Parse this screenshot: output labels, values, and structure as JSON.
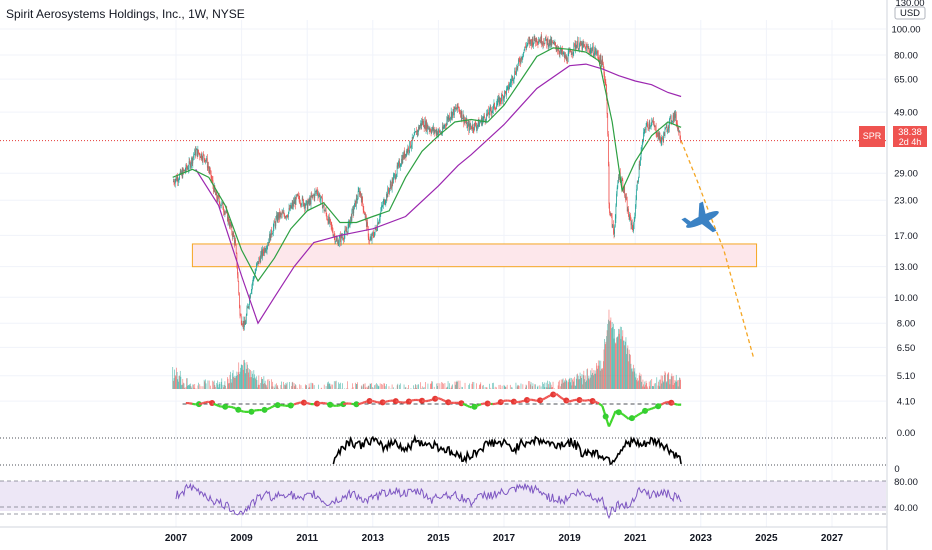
{
  "header": {
    "symbol_line": "Spirit Aerosystems Holdings, Inc., 1W, NYSE"
  },
  "price_scale": {
    "currency": "USD",
    "top_value": "130.00",
    "labels": [
      "100.00",
      "80.00",
      "65.00",
      "49.00",
      "38.38",
      "29.00",
      "23.00",
      "17.00",
      "13.00",
      "10.00",
      "8.00",
      "6.50",
      "5.10",
      "4.10"
    ],
    "last_price_tag": {
      "symbol": "SPR",
      "price": "38.38",
      "countdown": "2d 4h"
    }
  },
  "indicator_scales": {
    "oscillator_zero": "0.00",
    "black_line_zero": "0",
    "rsi_levels": [
      "80.00",
      "40.00"
    ]
  },
  "time_axis": {
    "labels": [
      "2007",
      "2009",
      "2011",
      "2013",
      "2015",
      "2017",
      "2019",
      "2021",
      "2023",
      "2025",
      "2027"
    ]
  },
  "colors": {
    "up": "#26a69a",
    "down": "#ef5350",
    "ma_fast": "#2ea043",
    "ma_slow": "#9c27b0",
    "support_zone_fill": "#fde7eb",
    "support_zone_border": "#f5a623",
    "projection": "#f5a623",
    "price_line": "#e53935",
    "rsi_line": "#7e57c2",
    "rsi_band": "#ede7f6",
    "airplane": "#3b82c4"
  },
  "icons": {
    "annotation": "airplane-icon"
  },
  "chart_data": {
    "type": "line",
    "title": "Spirit Aerosystems Holdings, Inc., 1W, NYSE",
    "scale": "log",
    "ylim": [
      3.6,
      130
    ],
    "xlim": [
      2006.7,
      2028.6
    ],
    "price_series": {
      "x": [
        2006.9,
        2007.2,
        2007.4,
        2007.6,
        2007.9,
        2008.2,
        2008.5,
        2008.8,
        2008.95,
        2009.1,
        2009.3,
        2009.5,
        2009.8,
        2010.1,
        2010.4,
        2010.7,
        2011.0,
        2011.3,
        2011.6,
        2011.9,
        2012.2,
        2012.4,
        2012.6,
        2012.9,
        2013.1,
        2013.3,
        2013.6,
        2013.9,
        2014.2,
        2014.5,
        2014.8,
        2015.1,
        2015.3,
        2015.6,
        2015.9,
        2016.2,
        2016.5,
        2016.8,
        2017.1,
        2017.4,
        2017.7,
        2018.0,
        2018.3,
        2018.6,
        2018.9,
        2019.2,
        2019.5,
        2019.8,
        2020.0,
        2020.12,
        2020.2,
        2020.35,
        2020.5,
        2020.6,
        2020.8,
        2020.95,
        2021.1,
        2021.3,
        2021.5,
        2021.8,
        2022.0,
        2022.2,
        2022.4
      ],
      "y": [
        27,
        29,
        31,
        35,
        33,
        24,
        21,
        16,
        8.5,
        7.8,
        11,
        13.5,
        16,
        20,
        20.5,
        23.5,
        22,
        25,
        20,
        16,
        17.5,
        21,
        25,
        16,
        18,
        22,
        27,
        33,
        38,
        45,
        42,
        41,
        47,
        51,
        43,
        44,
        48,
        53,
        59,
        72,
        88,
        92,
        90,
        86,
        77,
        88,
        85,
        82,
        74,
        60,
        22,
        17,
        29,
        27,
        20,
        18,
        29,
        43,
        45,
        38,
        44,
        48,
        38.38
      ]
    },
    "ma_fast": {
      "x": [
        2006.9,
        2007.5,
        2008.0,
        2008.5,
        2009.0,
        2009.5,
        2010.0,
        2010.5,
        2011.0,
        2011.5,
        2012.0,
        2012.5,
        2013.0,
        2013.5,
        2014.0,
        2014.5,
        2015.0,
        2015.5,
        2016.0,
        2016.5,
        2017.0,
        2017.5,
        2018.0,
        2018.5,
        2019.0,
        2019.5,
        2019.9,
        2020.3,
        2020.6,
        2021.0,
        2021.5,
        2022.0,
        2022.4
      ],
      "y": [
        28,
        30,
        28,
        22,
        15,
        11.5,
        14,
        18,
        21,
        22.5,
        19,
        19,
        20,
        21,
        28,
        35,
        40,
        45,
        46,
        45,
        52,
        64,
        79,
        85,
        84,
        82,
        76,
        45,
        25,
        32,
        40,
        45,
        43
      ]
    },
    "ma_slow": {
      "x": [
        2007.6,
        2008.3,
        2009.0,
        2009.5,
        2010.0,
        2010.6,
        2011.2,
        2012.0,
        2013.0,
        2014.0,
        2015.0,
        2015.6,
        2016.0,
        2017.0,
        2018.0,
        2019.0,
        2019.5,
        2020.0,
        2020.5,
        2021.0,
        2021.5,
        2022.0,
        2022.4
      ],
      "y": [
        30,
        22,
        12,
        8,
        10,
        13,
        16,
        17,
        18,
        20,
        26,
        31,
        34,
        44,
        60,
        73,
        74,
        71,
        67,
        64,
        62,
        58,
        56
      ]
    },
    "support_zone": {
      "x": [
        2007.5,
        2024.7
      ],
      "y": [
        13.0,
        15.8
      ]
    },
    "projection": {
      "x": [
        2022.4,
        2022.9,
        2023.3,
        2023.7,
        2024.2,
        2024.6
      ],
      "y": [
        38.38,
        27,
        20,
        15,
        9,
        6
      ]
    },
    "annotation_point": {
      "x": 2023.05,
      "y": 19.5
    },
    "volume": {
      "x": [
        2007.0,
        2007.5,
        2008.0,
        2008.5,
        2009.0,
        2009.5,
        2010.0,
        2011.0,
        2012.0,
        2013.0,
        2014.0,
        2015.0,
        2016.0,
        2017.0,
        2018.0,
        2019.0,
        2019.6,
        2020.0,
        2020.2,
        2020.4,
        2020.6,
        2020.8,
        2021.0,
        2021.3,
        2021.6,
        2022.0,
        2022.4
      ],
      "y": [
        5.5,
        4.8,
        5.0,
        5.0,
        6.0,
        5.2,
        4.9,
        4.8,
        4.9,
        4.8,
        4.8,
        4.9,
        4.9,
        4.8,
        4.9,
        5.0,
        5.5,
        6.0,
        9.0,
        7.5,
        8.0,
        6.5,
        5.5,
        5.0,
        5.0,
        5.4,
        5.1
      ]
    },
    "oscillator": {
      "x": [
        2007.3,
        2008.0,
        2008.8,
        2009.3,
        2010.0,
        2011.0,
        2012.0,
        2013.0,
        2014.0,
        2015.0,
        2016.0,
        2017.0,
        2018.0,
        2018.6,
        2019.0,
        2019.6,
        2020.0,
        2020.2,
        2020.4,
        2020.8,
        2021.2,
        2021.6,
        2022.0,
        2022.4
      ],
      "y": [
        0,
        0.05,
        -0.2,
        -0.35,
        -0.1,
        0.05,
        -0.05,
        0.1,
        0.1,
        0.2,
        -0.1,
        0.1,
        0.15,
        0.4,
        0.1,
        0.2,
        -0.1,
        -0.9,
        -0.3,
        -0.6,
        -0.4,
        -0.1,
        0.05,
        0.0
      ]
    },
    "black_line": {
      "x": [
        2011.8,
        2012.0,
        2012.3,
        2012.6,
        2013.0,
        2013.3,
        2013.7,
        2014.0,
        2014.3,
        2014.6,
        2014.9,
        2015.2,
        2015.5,
        2015.8,
        2016.0,
        2016.3,
        2016.6,
        2017.0,
        2017.3,
        2017.6,
        2017.9,
        2018.2,
        2018.5,
        2018.8,
        2019.1,
        2019.4,
        2019.7,
        2020.0,
        2020.3,
        2020.6,
        2020.9,
        2021.2,
        2021.5,
        2021.8,
        2022.1,
        2022.4
      ],
      "y": [
        0.05,
        0.55,
        0.85,
        0.7,
        0.9,
        0.6,
        0.85,
        0.5,
        0.9,
        0.75,
        0.7,
        0.55,
        0.35,
        0.25,
        0.3,
        0.6,
        0.8,
        0.75,
        0.55,
        0.8,
        0.9,
        0.85,
        0.7,
        0.75,
        0.8,
        0.4,
        0.45,
        0.3,
        0.1,
        0.6,
        0.85,
        0.65,
        0.85,
        0.75,
        0.45,
        0.1
      ]
    },
    "rsi": {
      "x": [
        2007.0,
        2007.4,
        2007.8,
        2008.2,
        2008.6,
        2009.0,
        2009.3,
        2009.7,
        2010.0,
        2010.4,
        2010.8,
        2011.2,
        2011.6,
        2012.0,
        2012.4,
        2012.8,
        2013.2,
        2013.6,
        2014.0,
        2014.4,
        2014.8,
        2015.2,
        2015.6,
        2016.0,
        2016.4,
        2016.8,
        2017.2,
        2017.6,
        2018.0,
        2018.4,
        2018.8,
        2019.2,
        2019.6,
        2020.0,
        2020.2,
        2020.5,
        2020.8,
        2021.1,
        2021.5,
        2021.9,
        2022.2,
        2022.4
      ],
      "y": [
        58,
        70,
        62,
        48,
        40,
        30,
        45,
        60,
        55,
        62,
        50,
        60,
        45,
        52,
        62,
        48,
        58,
        66,
        60,
        64,
        52,
        60,
        56,
        48,
        58,
        60,
        64,
        70,
        66,
        55,
        50,
        62,
        58,
        50,
        30,
        45,
        40,
        68,
        58,
        62,
        55,
        50
      ]
    }
  }
}
